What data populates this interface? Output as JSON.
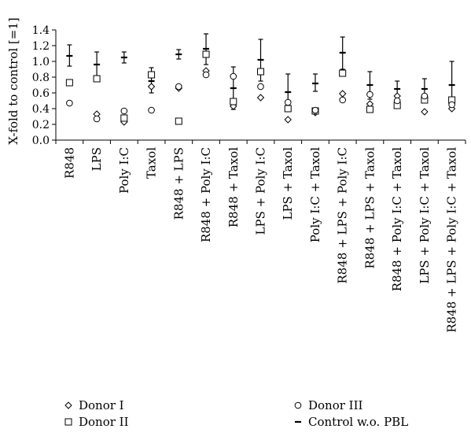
{
  "chart_data": {
    "type": "scatter",
    "title": "",
    "xlabel": "",
    "ylabel": "X-fold to control [=1]",
    "ylim": [
      0.0,
      1.4
    ],
    "yticks": [
      0.0,
      0.2,
      0.4,
      0.6,
      0.8,
      1.0,
      1.2,
      1.4
    ],
    "ytick_labels": [
      "0.0",
      "0.2",
      "0.4",
      "0.6",
      "0.8",
      "1.0",
      "1.2",
      "1.4"
    ],
    "grid": false,
    "legend_position": "bottom",
    "categories": [
      "R848",
      "LPS",
      "Poly I:C",
      "Taxol",
      "R848 + LPS",
      "R848 + Poly I:C",
      "R848 + Taxol",
      "LPS + Poly I:C",
      "LPS + Taxol",
      "Poly I:C + Taxol",
      "R848 + LPS + Poly I:C",
      "R848 + LPS + Taxol",
      "R848 + Poly I:C + Taxol",
      "LPS + Poly I:C + Taxol",
      "R848 + LPS + Poly I:C + Taxol"
    ],
    "series": [
      {
        "name": "Donor I",
        "marker": "diamond",
        "values": [
          0.73,
          0.33,
          0.23,
          0.68,
          0.66,
          0.88,
          0.43,
          0.54,
          0.26,
          0.35,
          0.59,
          0.46,
          0.56,
          0.36,
          0.4
        ]
      },
      {
        "name": "Donor II",
        "marker": "square",
        "values": [
          0.73,
          0.78,
          0.28,
          0.83,
          0.24,
          1.09,
          0.49,
          0.87,
          0.4,
          0.37,
          0.85,
          0.39,
          0.44,
          0.51,
          0.51
        ]
      },
      {
        "name": "Donor III",
        "marker": "circle",
        "values": [
          0.47,
          0.27,
          0.37,
          0.38,
          0.68,
          0.83,
          0.81,
          0.68,
          0.48,
          0.38,
          0.51,
          0.58,
          0.5,
          0.56,
          0.45
        ]
      },
      {
        "name": "Control w.o. PBL",
        "marker": "dash",
        "values": [
          1.07,
          0.96,
          1.05,
          0.75,
          1.09,
          1.16,
          0.66,
          1.02,
          0.61,
          0.72,
          1.11,
          0.7,
          0.65,
          0.65,
          0.7
        ],
        "error_high": [
          1.21,
          1.12,
          1.12,
          0.92,
          1.15,
          1.35,
          0.93,
          1.28,
          0.84,
          0.84,
          1.31,
          0.87,
          0.75,
          0.78,
          1.0
        ],
        "error_low": [
          0.94,
          0.78,
          0.98,
          0.6,
          1.03,
          0.96,
          0.39,
          0.75,
          0.4,
          0.62,
          0.9,
          0.52,
          0.55,
          0.52,
          0.4
        ]
      }
    ]
  }
}
